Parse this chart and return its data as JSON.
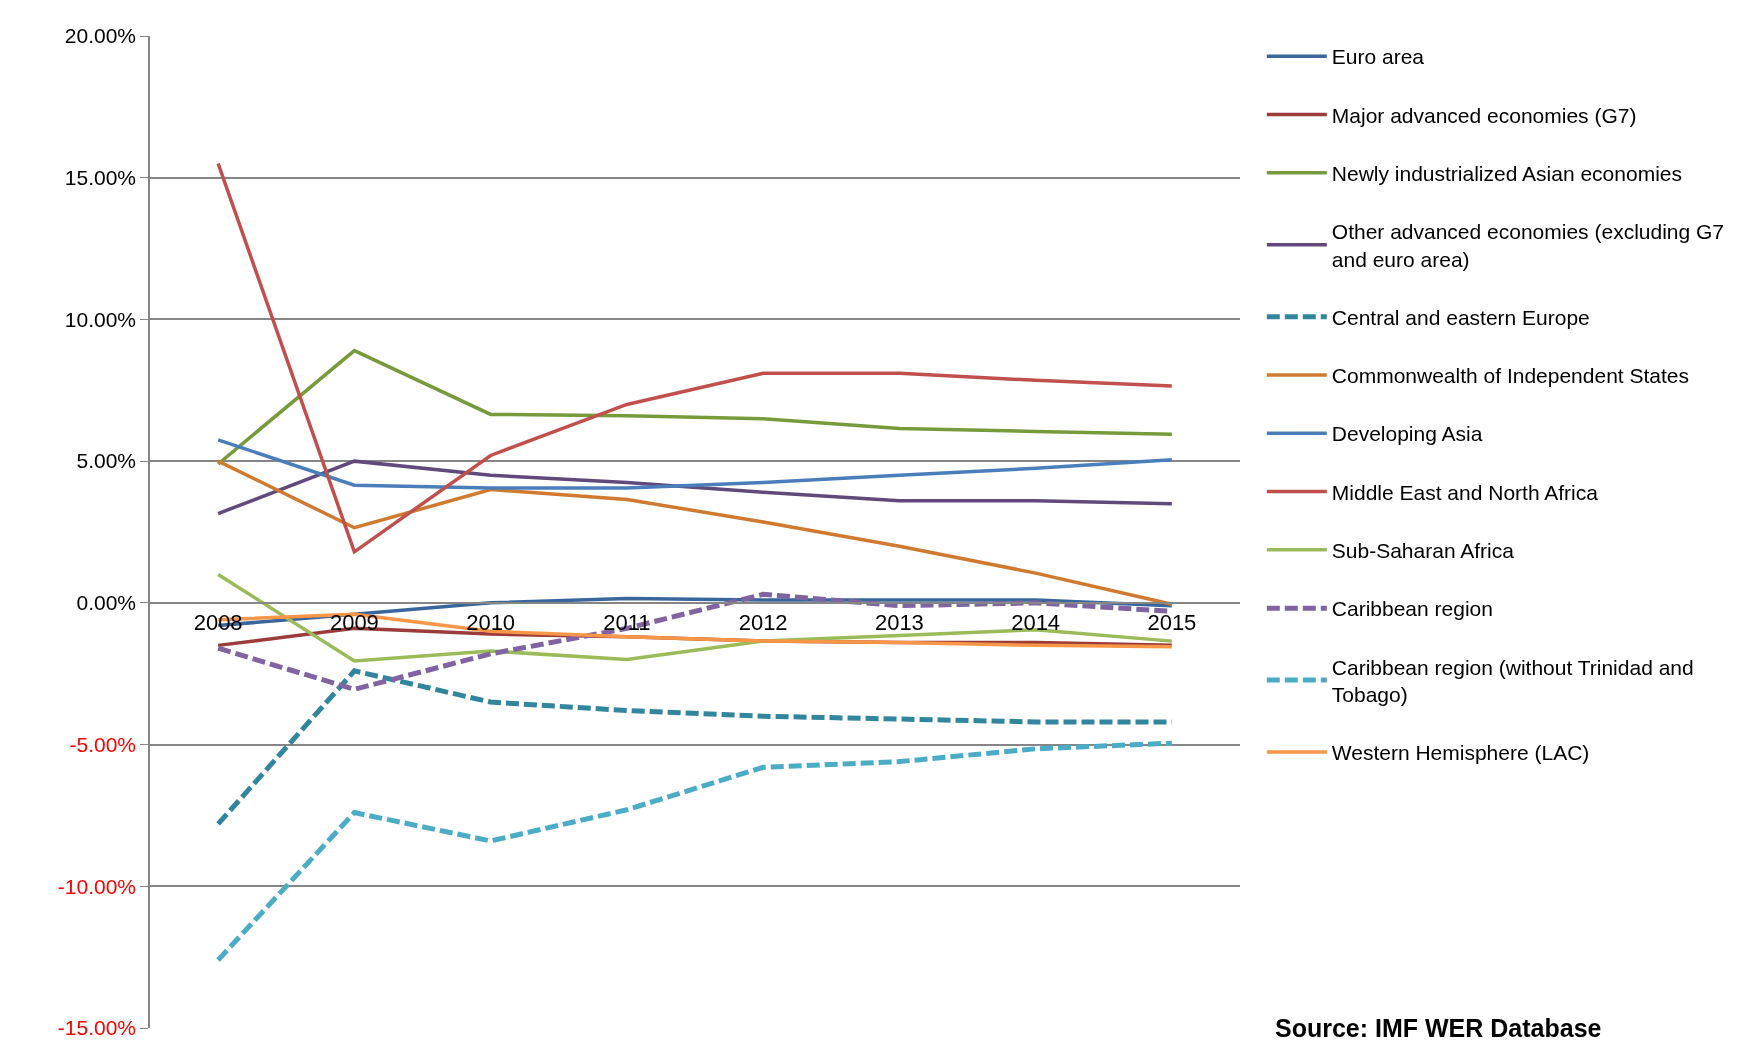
{
  "chart_data": {
    "type": "line",
    "categories": [
      "2008",
      "2009",
      "2010",
      "2011",
      "2012",
      "2013",
      "2014",
      "2015"
    ],
    "ylim": [
      -15,
      20
    ],
    "yticks": [
      {
        "value": -15,
        "label": "-15.00%"
      },
      {
        "value": -10,
        "label": "-10.00%"
      },
      {
        "value": -5,
        "label": "-5.00%"
      },
      {
        "value": 0,
        "label": "0.00%"
      },
      {
        "value": 5,
        "label": "5.00%"
      },
      {
        "value": 10,
        "label": "10.00%"
      },
      {
        "value": 15,
        "label": "15.00%"
      },
      {
        "value": 20,
        "label": "20.00%"
      }
    ],
    "grid": "y",
    "legend": "right",
    "marker": "none",
    "annotations": [
      "Source: IMF WER Database"
    ],
    "series": [
      {
        "name": "Euro area",
        "color": "#3a679b",
        "line_style": "solid",
        "values": [
          -0.8,
          -0.4,
          0.0,
          0.15,
          0.1,
          0.1,
          0.1,
          -0.1
        ]
      },
      {
        "name": "Major advanced economies (G7)",
        "color": "#9b3b3a",
        "line_style": "solid",
        "values": [
          -1.5,
          -0.9,
          -1.1,
          -1.2,
          -1.35,
          -1.4,
          -1.4,
          -1.5
        ]
      },
      {
        "name": "Newly industrialized Asian economies",
        "color": "#779a3c",
        "line_style": "solid",
        "values": [
          4.9,
          8.9,
          6.65,
          6.6,
          6.5,
          6.15,
          6.05,
          5.95
        ]
      },
      {
        "name": "Other advanced economies (excluding G7 and euro area)",
        "color": "#604a7b",
        "line_style": "solid",
        "values": [
          3.15,
          5.0,
          4.5,
          4.25,
          3.9,
          3.6,
          3.6,
          3.5
        ]
      },
      {
        "name": "Central and eastern Europe",
        "color": "#31859c",
        "line_style": "dashed",
        "values": [
          -7.8,
          -2.4,
          -3.5,
          -3.8,
          -4.0,
          -4.1,
          -4.2,
          -4.2
        ]
      },
      {
        "name": "Commonwealth of Independent States",
        "color": "#d07a30",
        "line_style": "solid",
        "values": [
          5.0,
          2.65,
          4.0,
          3.65,
          2.85,
          2.0,
          1.05,
          -0.05
        ]
      },
      {
        "name": "Developing Asia",
        "color": "#4a7ebb",
        "line_style": "solid",
        "values": [
          5.75,
          4.15,
          4.05,
          4.05,
          4.25,
          4.5,
          4.75,
          5.05
        ]
      },
      {
        "name": "Middle East and North Africa",
        "color": "#c0504d",
        "line_style": "solid",
        "values": [
          15.5,
          1.8,
          5.2,
          7.0,
          8.1,
          8.1,
          7.85,
          7.65
        ]
      },
      {
        "name": "Sub-Saharan Africa",
        "color": "#9bbb59",
        "line_style": "solid",
        "values": [
          1.0,
          -2.05,
          -1.7,
          -2.0,
          -1.35,
          -1.15,
          -0.95,
          -1.35
        ]
      },
      {
        "name": "Caribbean region",
        "color": "#8064a2",
        "line_style": "dashed",
        "values": [
          -1.6,
          -3.05,
          -1.8,
          -0.9,
          0.3,
          -0.1,
          0.0,
          -0.3
        ]
      },
      {
        "name": "Caribbean region (without Trinidad and Tobago)",
        "color": "#4bacc6",
        "line_style": "dashed",
        "values": [
          -12.6,
          -7.4,
          -8.4,
          -7.3,
          -5.8,
          -5.6,
          -5.15,
          -4.95
        ]
      },
      {
        "name": "Western Hemisphere (LAC)",
        "color": "#f79646",
        "line_style": "solid",
        "values": [
          -0.6,
          -0.4,
          -1.0,
          -1.2,
          -1.35,
          -1.4,
          -1.5,
          -1.55
        ]
      }
    ]
  }
}
